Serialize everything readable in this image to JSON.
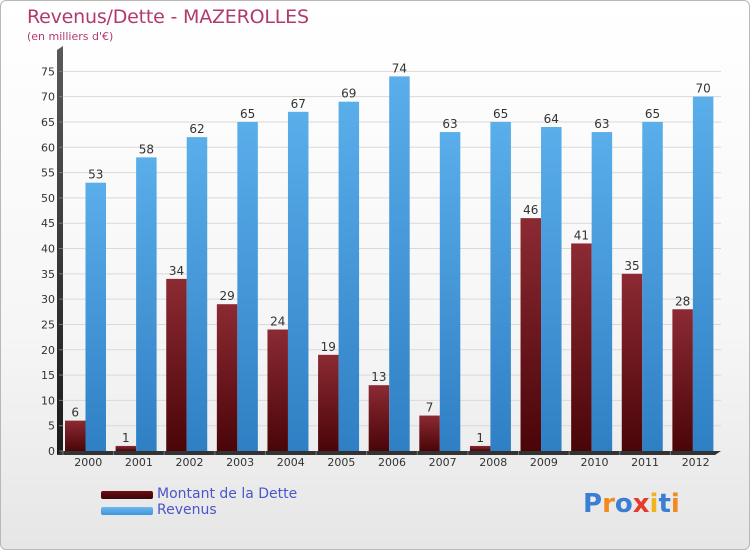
{
  "header": {
    "title": "Revenus/Dette - MAZEROLLES",
    "subtitle": "(en milliers d'€)"
  },
  "chart_data": {
    "type": "bar",
    "categories": [
      "2000",
      "2001",
      "2002",
      "2003",
      "2004",
      "2005",
      "2006",
      "2007",
      "2008",
      "2009",
      "2010",
      "2011",
      "2012"
    ],
    "series": [
      {
        "name": "Montant de la Dette",
        "color": "#7a1020",
        "values": [
          6,
          1,
          34,
          29,
          24,
          19,
          13,
          7,
          1,
          46,
          41,
          35,
          28
        ]
      },
      {
        "name": "Revenus",
        "color": "#3d95dc",
        "values": [
          53,
          58,
          62,
          65,
          67,
          69,
          74,
          63,
          65,
          64,
          63,
          65,
          70
        ]
      }
    ],
    "ylim": [
      0,
      80
    ],
    "yticks": [
      0,
      5,
      10,
      15,
      20,
      25,
      30,
      35,
      40,
      45,
      50,
      55,
      60,
      65,
      70,
      75
    ],
    "grid": true,
    "legend_position": "bottom-left"
  },
  "legend": {
    "debt_label": "Montant de la Dette",
    "revenue_label": "Revenus",
    "debt_color": "#6b0f14",
    "revenue_color": "#3d95dc"
  },
  "logo": {
    "letters": [
      "P",
      "r",
      "o",
      "x",
      "i",
      "t",
      "i"
    ],
    "colors": [
      "#3b7fd4",
      "#f28a1f",
      "#3b7fd4",
      "#e43b2a",
      "#f2b320",
      "#3b7fd4",
      "#f28a1f"
    ]
  }
}
